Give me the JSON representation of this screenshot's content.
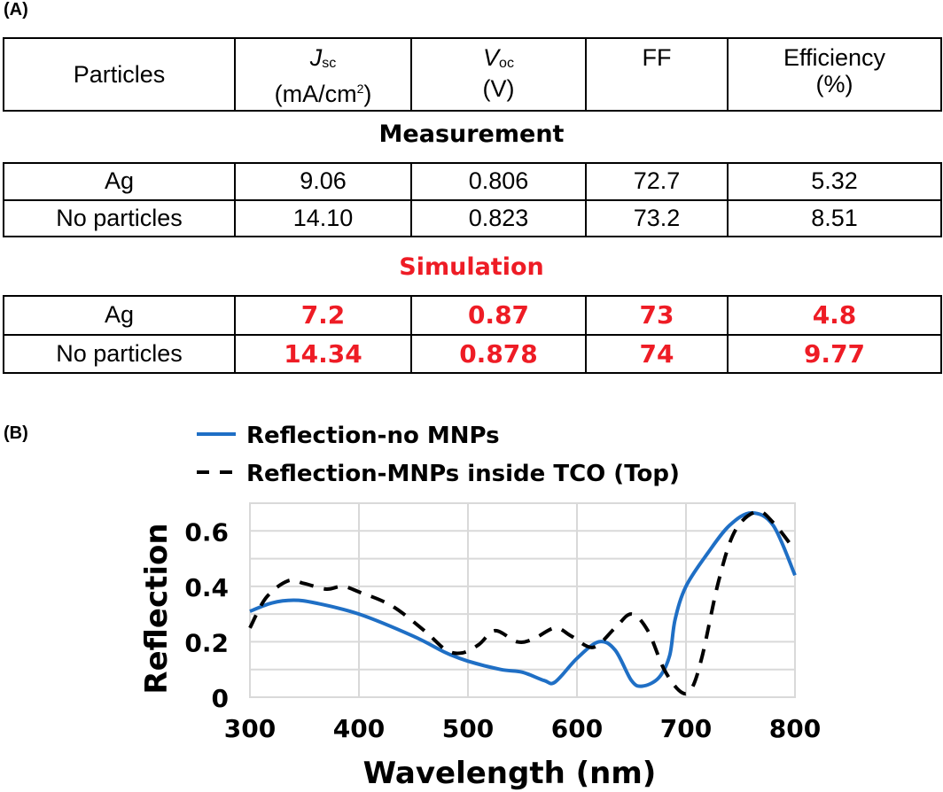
{
  "panel_a": {
    "label": "(A)",
    "headers": {
      "particles": "Particles",
      "jsc_symbol": "J",
      "jsc_sub": "sc",
      "jsc_unit_pre": "(mA/cm",
      "jsc_unit_sup": "2",
      "jsc_unit_post": ")",
      "voc_symbol": "V",
      "voc_sub": "oc",
      "voc_unit": "(V)",
      "ff": "FF",
      "eff": "Efficiency",
      "eff_unit": "(%)"
    },
    "measurement_title": "Measurement",
    "measurement_rows": [
      {
        "particles": "Ag",
        "jsc": "9.06",
        "voc": "0.806",
        "ff": "72.7",
        "eff": "5.32"
      },
      {
        "particles": "No particles",
        "jsc": "14.10",
        "voc": "0.823",
        "ff": "73.2",
        "eff": "8.51"
      }
    ],
    "simulation_title": "Simulation",
    "simulation_rows": [
      {
        "particles": "Ag",
        "jsc": "7.2",
        "voc": "0.87",
        "ff": "73",
        "eff": "4.8"
      },
      {
        "particles": "No particles",
        "jsc": "14.34",
        "voc": "0.878",
        "ff": "74",
        "eff": "9.77"
      }
    ],
    "simulation_color": "#ee1c25"
  },
  "panel_b_label": "(B)",
  "chart_data": {
    "type": "line",
    "xlabel": "Wavelength (nm)",
    "ylabel": "Reflection",
    "xlim": [
      300,
      800
    ],
    "ylim": [
      0,
      0.7
    ],
    "xticks": [
      "300",
      "400",
      "500",
      "600",
      "700",
      "800"
    ],
    "yticks": [
      "0",
      "0.2",
      "0.4",
      "0.6"
    ],
    "grid": true,
    "legend": "top",
    "series": [
      {
        "name": "Reflection-no MNPs",
        "color": "#1f6fc5",
        "style": "solid",
        "x": [
          300,
          320,
          340,
          360,
          400,
          450,
          480,
          500,
          530,
          550,
          570,
          580,
          600,
          620,
          635,
          650,
          660,
          675,
          685,
          690,
          700,
          720,
          740,
          760,
          780,
          800
        ],
        "y": [
          0.31,
          0.34,
          0.35,
          0.34,
          0.3,
          0.22,
          0.16,
          0.13,
          0.1,
          0.09,
          0.06,
          0.055,
          0.14,
          0.2,
          0.17,
          0.06,
          0.04,
          0.07,
          0.15,
          0.28,
          0.4,
          0.52,
          0.62,
          0.665,
          0.62,
          0.44
        ]
      },
      {
        "name": "Reflection-MNPs inside TCO (Top)",
        "color": "#000000",
        "style": "dashed",
        "x": [
          300,
          315,
          335,
          350,
          370,
          385,
          400,
          430,
          460,
          480,
          495,
          510,
          525,
          545,
          560,
          580,
          595,
          615,
          635,
          650,
          665,
          680,
          695,
          705,
          715,
          730,
          745,
          765,
          780,
          800
        ],
        "y": [
          0.25,
          0.36,
          0.42,
          0.41,
          0.39,
          0.4,
          0.38,
          0.33,
          0.24,
          0.17,
          0.16,
          0.19,
          0.24,
          0.2,
          0.21,
          0.25,
          0.22,
          0.18,
          0.25,
          0.3,
          0.24,
          0.1,
          0.02,
          0.03,
          0.15,
          0.42,
          0.6,
          0.67,
          0.63,
          0.53
        ]
      }
    ]
  }
}
